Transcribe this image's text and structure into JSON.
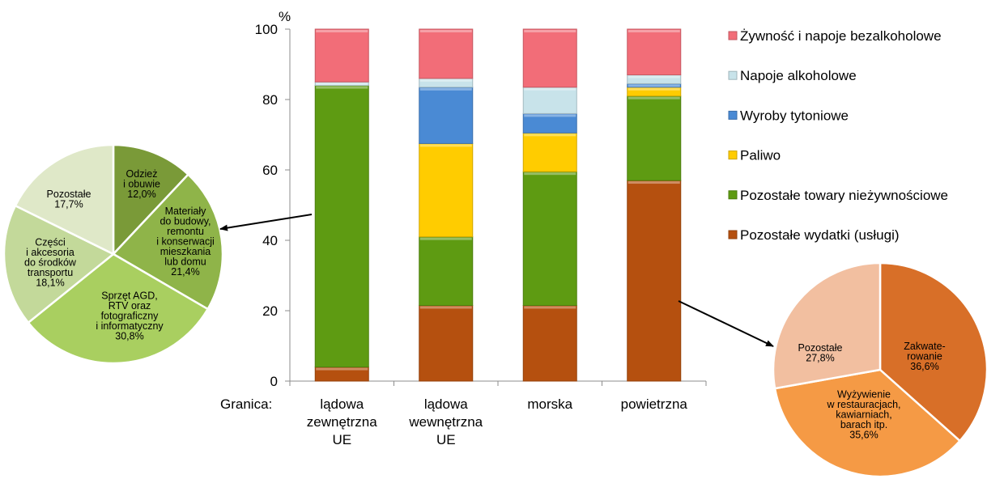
{
  "chart_data": [
    {
      "type": "bar",
      "stacked": true,
      "ylabel": "%",
      "ylim": [
        0,
        100
      ],
      "yticks": [
        0,
        20,
        40,
        60,
        80,
        100
      ],
      "grid": false,
      "legend_position": "right",
      "x_axis_title": "Granica:",
      "categories": [
        [
          "lądowa",
          "zewnętrzna",
          "UE"
        ],
        [
          "lądowa",
          "wewnętrzna",
          "UE"
        ],
        [
          "morska"
        ],
        [
          "powietrzna"
        ]
      ],
      "series": [
        {
          "name": "Pozostałe wydatki (usługi)",
          "color": "#b5500f",
          "values": [
            4,
            21.5,
            21.5,
            57
          ]
        },
        {
          "name": "Pozostałe towary nieżywnościowe",
          "color": "#5e9b12",
          "values": [
            80,
            19.5,
            38,
            24
          ]
        },
        {
          "name": "Paliwo",
          "color": "#ffcc00",
          "values": [
            0,
            26.5,
            11,
            2.5
          ]
        },
        {
          "name": "Wyroby tytoniowe",
          "color": "#4a8ad4",
          "values": [
            0,
            16,
            5.5,
            1
          ]
        },
        {
          "name": "Napoje alkoholowe",
          "color": "#c8e3ea",
          "values": [
            1,
            2.5,
            7.5,
            2.5
          ]
        },
        {
          "name": "Żywność i napoje bezalkoholowe",
          "color": "#f26d78",
          "values": [
            15,
            14,
            16.5,
            13
          ]
        }
      ]
    },
    {
      "type": "pie",
      "slices": [
        {
          "label": [
            "Odzież",
            "i obuwie",
            "12,0%"
          ],
          "value": 12.0,
          "color": "#7a9a38"
        },
        {
          "label": [
            "Materiały",
            "do budowy,",
            "remontu",
            "i konserwacji",
            "mieszkania",
            "lub domu",
            "21,4%"
          ],
          "value": 21.4,
          "color": "#8fb449"
        },
        {
          "label": [
            "Sprzęt AGD,",
            "RTV oraz",
            "fotograficzny",
            "i informatyczny",
            "30,8%"
          ],
          "value": 30.8,
          "color": "#a9cf60"
        },
        {
          "label": [
            "Części",
            "i akcesoria",
            "do środków",
            "transportu",
            "18,1%"
          ],
          "value": 18.1,
          "color": "#c3d99a"
        },
        {
          "label": [
            "Pozostałe",
            "17,7%"
          ],
          "value": 17.7,
          "color": "#dfe8c8"
        }
      ]
    },
    {
      "type": "pie",
      "slices": [
        {
          "label": [
            "Zakwate-",
            "rowanie",
            "36,6%"
          ],
          "value": 36.6,
          "color": "#d86f28"
        },
        {
          "label": [
            "Wyżywienie",
            "w restauracjach,",
            "kawiarniach,",
            "barach itp.",
            "35,6%"
          ],
          "value": 35.6,
          "color": "#f59a45"
        },
        {
          "label": [
            "Pozostałe",
            "27,8%"
          ],
          "value": 27.8,
          "color": "#f2bfa0"
        }
      ]
    }
  ]
}
